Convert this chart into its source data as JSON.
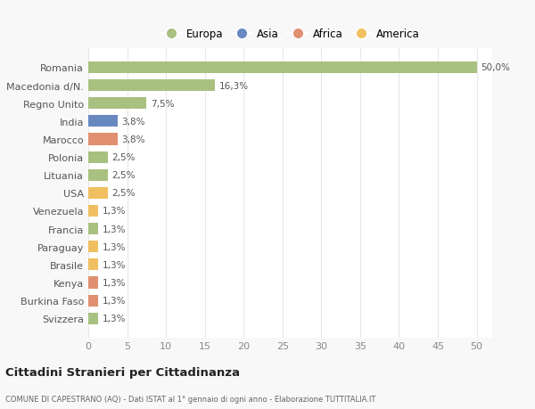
{
  "categories": [
    "Svizzera",
    "Burkina Faso",
    "Kenya",
    "Brasile",
    "Paraguay",
    "Francia",
    "Venezuela",
    "USA",
    "Lituania",
    "Polonia",
    "Marocco",
    "India",
    "Regno Unito",
    "Macedonia d/N.",
    "Romania"
  ],
  "values": [
    1.3,
    1.3,
    1.3,
    1.3,
    1.3,
    1.3,
    1.3,
    2.5,
    2.5,
    2.5,
    3.8,
    3.8,
    7.5,
    16.3,
    50.0
  ],
  "colors": [
    "#a8c080",
    "#e09070",
    "#e09070",
    "#f0c060",
    "#f0c060",
    "#a8c080",
    "#f0c060",
    "#f0c060",
    "#a8c080",
    "#a8c080",
    "#e09070",
    "#6888c0",
    "#a8c080",
    "#a8c080",
    "#a8c080"
  ],
  "labels": [
    "1,3%",
    "1,3%",
    "1,3%",
    "1,3%",
    "1,3%",
    "1,3%",
    "1,3%",
    "2,5%",
    "2,5%",
    "2,5%",
    "3,8%",
    "3,8%",
    "7,5%",
    "16,3%",
    "50,0%"
  ],
  "legend_labels": [
    "Europa",
    "Asia",
    "Africa",
    "America"
  ],
  "legend_colors": [
    "#a8c080",
    "#6888c0",
    "#e09070",
    "#f0c060"
  ],
  "title": "Cittadini Stranieri per Cittadinanza",
  "subtitle": "COMUNE DI CAPESTRANO (AQ) - Dati ISTAT al 1° gennaio di ogni anno - Elaborazione TUTTITALIA.IT",
  "xlim": [
    0,
    52
  ],
  "xticks": [
    0,
    5,
    10,
    15,
    20,
    25,
    30,
    35,
    40,
    45,
    50
  ],
  "background_color": "#f8f8f8",
  "plot_bg_color": "#ffffff",
  "grid_color": "#e8e8e8",
  "bar_height": 0.65
}
